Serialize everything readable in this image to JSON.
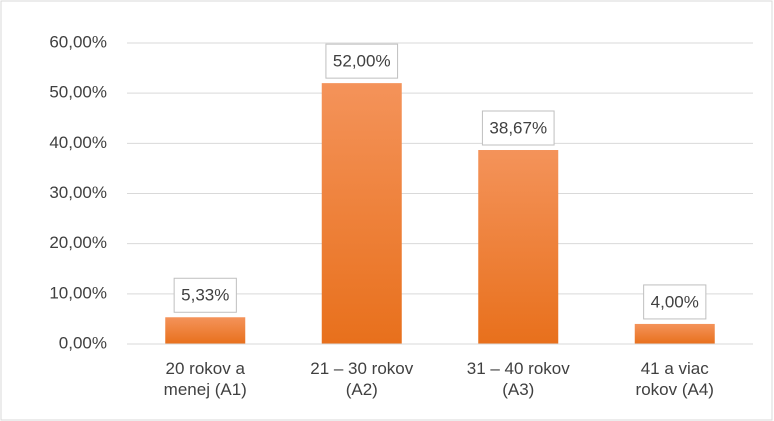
{
  "chart_data": {
    "type": "bar",
    "categories": [
      "20 rokov a menej (A1)",
      "21 – 30 rokov (A2)",
      "31 – 40 rokov (A3)",
      "41 a viac rokov (A4)"
    ],
    "values": [
      5.33,
      52,
      38.67,
      4
    ],
    "value_labels": [
      "5,33%",
      "52,00%",
      "38,67%",
      "4,00%"
    ],
    "color": "#ec7a2a",
    "ylim": [
      0,
      60
    ],
    "yticks": [
      {
        "value": 0,
        "label": "0,00%"
      },
      {
        "value": 10,
        "label": "10,00%"
      },
      {
        "value": 20,
        "label": "20,00%"
      },
      {
        "value": 30,
        "label": "30,00%"
      },
      {
        "value": 40,
        "label": "40,00%"
      },
      {
        "value": 50,
        "label": "50,00%"
      },
      {
        "value": 60,
        "label": "60,00%"
      }
    ],
    "grid": true
  }
}
